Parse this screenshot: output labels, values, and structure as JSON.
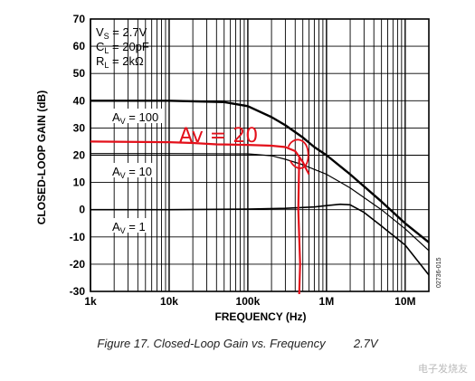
{
  "chart_data": {
    "type": "line",
    "xlabel": "FREQUENCY (Hz)",
    "ylabel": "CLOSED-LOOP GAIN (dB)",
    "x_scale": "log",
    "xlim": [
      1000,
      20000000
    ],
    "ylim": [
      -30,
      70
    ],
    "x_ticks": [
      {
        "value": 1000,
        "label": "1k"
      },
      {
        "value": 10000,
        "label": "10k"
      },
      {
        "value": 100000,
        "label": "100k"
      },
      {
        "value": 1000000,
        "label": "1M"
      },
      {
        "value": 10000000,
        "label": "10M"
      }
    ],
    "y_ticks": [
      70,
      60,
      50,
      40,
      30,
      20,
      10,
      0,
      -10,
      -20,
      -30
    ],
    "grid": true,
    "series": [
      {
        "name": "AV = 100",
        "color": "#000000",
        "x": [
          1000,
          10000,
          50000,
          100000,
          200000,
          300000,
          500000,
          700000,
          1000000,
          2000000,
          5000000,
          10000000,
          20000000
        ],
        "y": [
          40,
          40,
          39.5,
          38,
          34,
          31,
          26.5,
          23,
          20,
          13,
          3,
          -5,
          -12
        ]
      },
      {
        "name": "AV = 10",
        "color": "#000000",
        "x": [
          1000,
          10000,
          100000,
          200000,
          300000,
          500000,
          700000,
          1000000,
          2000000,
          5000000,
          10000000,
          20000000
        ],
        "y": [
          20.6,
          20.6,
          20.5,
          19.8,
          18.5,
          16.5,
          14.8,
          13,
          8,
          0,
          -7,
          -15
        ]
      },
      {
        "name": "AV = 1",
        "color": "#000000",
        "x": [
          1000,
          10000,
          100000,
          300000,
          700000,
          1000000,
          1500000,
          2000000,
          3000000,
          5000000,
          10000000,
          20000000
        ],
        "y": [
          0,
          0,
          0.2,
          0.5,
          1,
          1.5,
          2,
          1.8,
          -1,
          -6,
          -13,
          -24
        ]
      }
    ],
    "legend": {
      "lines": [
        "VS = 2.7V",
        "CL = 20pF",
        "RL = 2kΩ"
      ]
    },
    "annotations": [
      {
        "text": "AV = 100"
      },
      {
        "text": "AV = 10"
      },
      {
        "text": "AV = 1"
      },
      {
        "text": "Av = 20",
        "handwritten": true,
        "color": "#e3101a"
      }
    ],
    "handwritten_trace": {
      "color": "#e3101a",
      "x": [
        1000,
        10000,
        20000,
        40000,
        100000,
        200000,
        300000,
        400000,
        500000,
        550000,
        600000
      ],
      "y": [
        25,
        24.8,
        24.5,
        24,
        23.8,
        23.5,
        23,
        21.5,
        17.5,
        15,
        13
      ],
      "vertical_x": 450000
    },
    "side_code": "02736-015",
    "caption": "Figure 17. Closed-Loop Gain vs. Frequency",
    "caption_tail": "2.7V",
    "watermark": "电子发烧友"
  }
}
